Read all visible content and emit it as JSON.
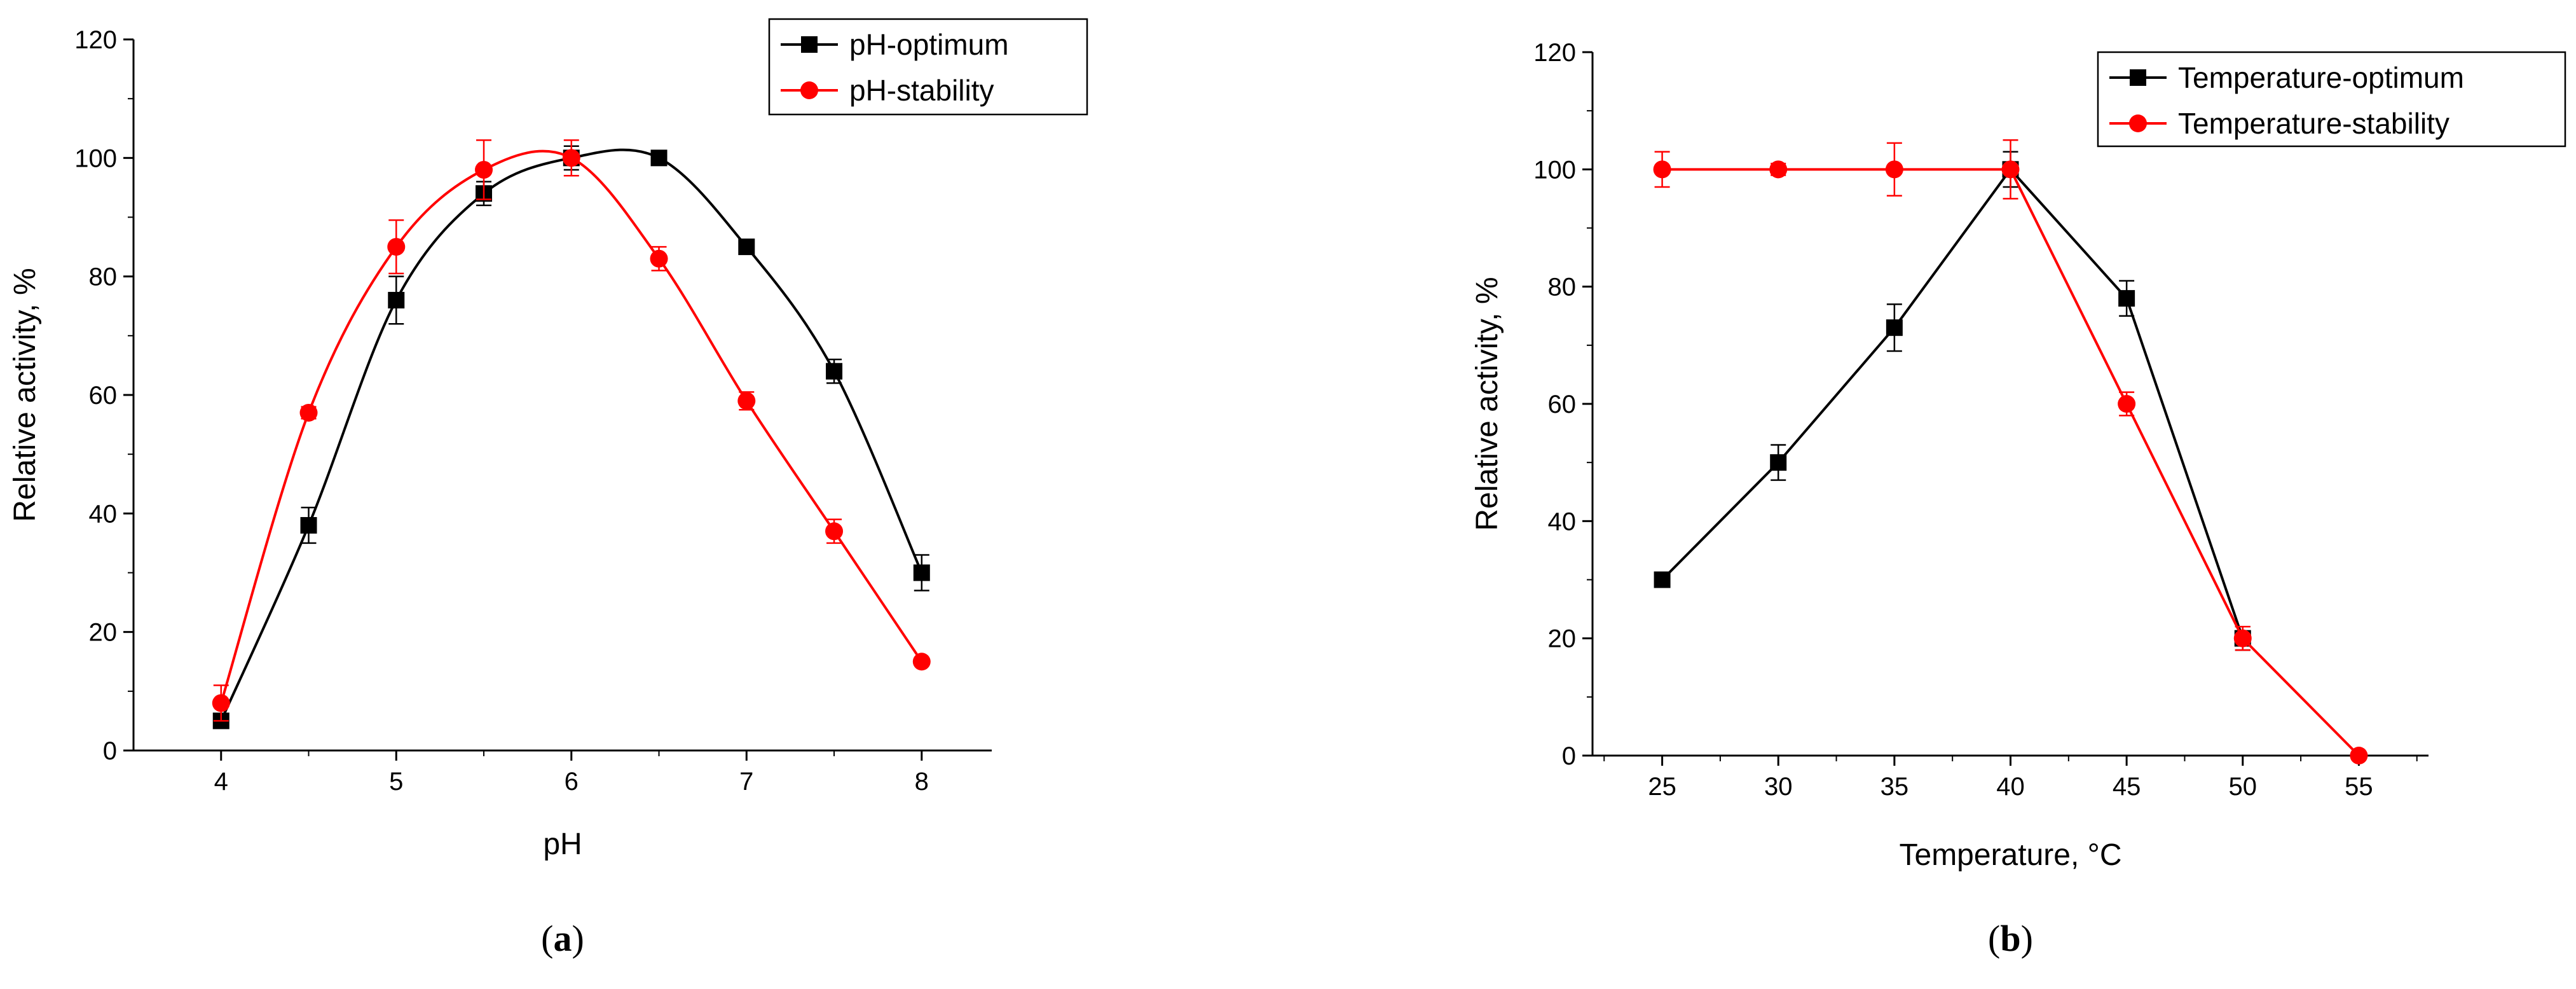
{
  "chart_data": [
    {
      "type": "line",
      "panel_label": "a",
      "xlabel": "pH",
      "ylabel": "Relative activity, %",
      "xlim": [
        3.5,
        8.4
      ],
      "ylim": [
        0,
        120
      ],
      "xticks": [
        4,
        5,
        6,
        7,
        8
      ],
      "yticks": [
        0,
        20,
        40,
        60,
        80,
        100,
        120
      ],
      "legend_position": "top-right",
      "smooth": true,
      "series": [
        {
          "name": "pH-optimum",
          "color": "#000000",
          "marker": "square",
          "x": [
            4,
            4.5,
            5,
            5.5,
            6,
            6.5,
            7,
            7.5,
            8
          ],
          "y": [
            5,
            38,
            76,
            94,
            100,
            100,
            85,
            64,
            30
          ],
          "err": [
            1,
            3,
            4,
            2,
            2,
            1,
            1,
            2,
            3
          ]
        },
        {
          "name": "pH-stability",
          "color": "#ff0000",
          "marker": "circle",
          "x": [
            4,
            4.5,
            5,
            5.5,
            6,
            6.5,
            7,
            7.5,
            8
          ],
          "y": [
            8,
            57,
            85,
            98,
            100,
            83,
            59,
            37,
            15
          ],
          "err": [
            3,
            1,
            4.5,
            5,
            3,
            2,
            1.5,
            2,
            0.5
          ]
        }
      ]
    },
    {
      "type": "line",
      "panel_label": "b",
      "xlabel": "Temperature, °C",
      "ylabel": "Relative activity, %",
      "xlim": [
        22,
        58
      ],
      "ylim": [
        0,
        120
      ],
      "xticks": [
        25,
        30,
        35,
        40,
        45,
        50,
        55
      ],
      "yticks": [
        0,
        20,
        40,
        60,
        80,
        100,
        120
      ],
      "legend_position": "top-right",
      "smooth": false,
      "series": [
        {
          "name": "Temperature-optimum",
          "color": "#000000",
          "marker": "square",
          "x": [
            25,
            30,
            35,
            40,
            45,
            50
          ],
          "y": [
            30,
            50,
            73,
            100,
            78,
            20
          ],
          "err": [
            0.5,
            3,
            4,
            3,
            3,
            2
          ]
        },
        {
          "name": "Temperature-stability",
          "color": "#ff0000",
          "marker": "circle",
          "x": [
            25,
            30,
            35,
            40,
            45,
            50,
            55
          ],
          "y": [
            100,
            100,
            100,
            100,
            60,
            20,
            0
          ],
          "err": [
            3,
            1,
            4.5,
            5,
            2,
            2,
            0
          ]
        }
      ]
    }
  ]
}
